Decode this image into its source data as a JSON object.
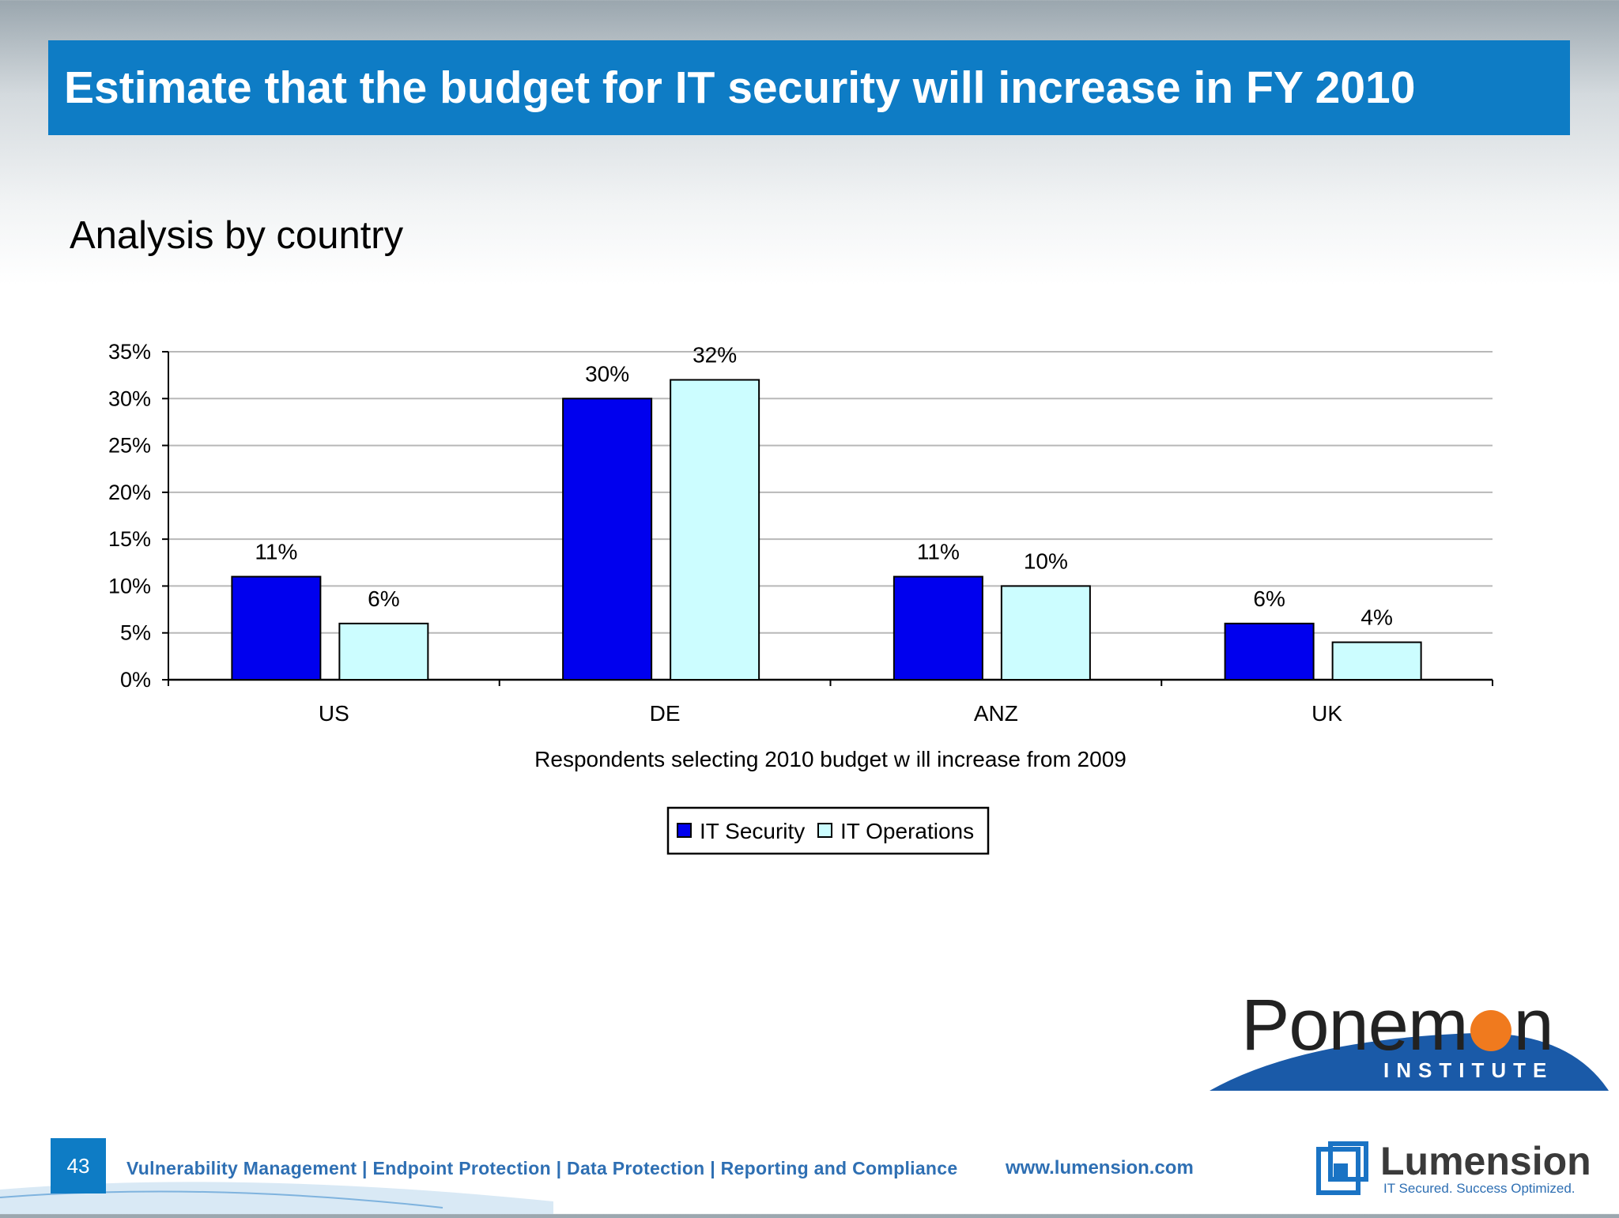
{
  "title": "Estimate that the budget for IT security will increase in FY 2010",
  "subtitle": "Analysis by country",
  "footer": {
    "page_number": "43",
    "tagline": "Vulnerability Management | Endpoint Protection | Data Protection | Reporting and Compliance",
    "url": "www.lumension.com"
  },
  "logos": {
    "ponemon": {
      "name_part1": "Ponem",
      "name_part2": "n",
      "sub": "INSTITUTE"
    },
    "lumension": {
      "name": "Lumension",
      "tagline": "IT Secured. Success Optimized."
    }
  },
  "colors": {
    "title_bar": "#0e7cc5",
    "it_security": "#0000ee",
    "it_operations": "#ccfdff",
    "ponemon_orange": "#f07a1e"
  },
  "chart_data": {
    "type": "bar",
    "categories": [
      "US",
      "DE",
      "ANZ",
      "UK"
    ],
    "series": [
      {
        "name": "IT Security",
        "values": [
          11,
          30,
          11,
          6
        ],
        "labels": [
          "11%",
          "30%",
          "11%",
          "6%"
        ]
      },
      {
        "name": "IT Operations",
        "values": [
          6,
          32,
          10,
          4
        ],
        "labels": [
          "6%",
          "32%",
          "10%",
          "4%"
        ]
      }
    ],
    "yticks": [
      "0%",
      "5%",
      "10%",
      "15%",
      "20%",
      "25%",
      "30%",
      "35%"
    ],
    "ylim": [
      0,
      35
    ],
    "xlabel": "Respondents selecting 2010 budget w ill increase from 2009",
    "ylabel": "",
    "grid": true,
    "legend": "bottom-center"
  }
}
